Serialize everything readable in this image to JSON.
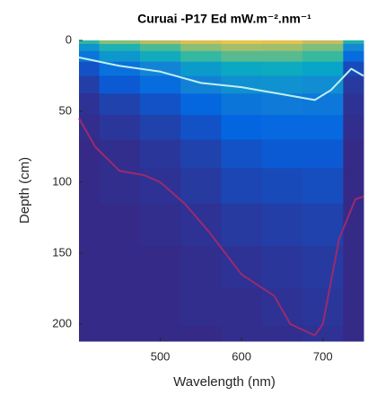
{
  "chart_data": {
    "type": "heatmap",
    "title": "Curuai -P17 Ed mW.m⁻².nm⁻¹",
    "x_label": "Wavelength  (nm)",
    "y_label": "Depth  (cm)",
    "xlim": [
      400,
      750
    ],
    "xticks": [
      500,
      600,
      700
    ],
    "ylim": [
      0,
      212
    ],
    "yticks": [
      0,
      50,
      100,
      150,
      200
    ],
    "y_reversed": true,
    "zlim": [
      0,
      100
    ],
    "colormap": [
      "#352a87",
      "#0363e1",
      "#1485d4",
      "#06a7c6",
      "#38b99e",
      "#92bf73",
      "#d9ba56",
      "#f9d53a"
    ],
    "x": [
      400,
      450,
      500,
      550,
      600,
      650,
      700,
      750
    ],
    "y": [
      0,
      5,
      10,
      20,
      30,
      45,
      60,
      80,
      100,
      130,
      160,
      190,
      212
    ],
    "z": [
      [
        55,
        70,
        80,
        88,
        92,
        90,
        82,
        50
      ],
      [
        35,
        50,
        60,
        70,
        75,
        74,
        68,
        30
      ],
      [
        22,
        36,
        46,
        56,
        62,
        62,
        57,
        18
      ],
      [
        10,
        20,
        28,
        38,
        44,
        45,
        42,
        8
      ],
      [
        5,
        12,
        18,
        27,
        33,
        34,
        32,
        4
      ],
      [
        2,
        6,
        10,
        16,
        22,
        24,
        23,
        2
      ],
      [
        1,
        3,
        6,
        10,
        15,
        17,
        17,
        1
      ],
      [
        0,
        1,
        3,
        6,
        10,
        12,
        12,
        0
      ],
      [
        0,
        1,
        2,
        4,
        7,
        8,
        9,
        0
      ],
      [
        0,
        0,
        1,
        2,
        4,
        5,
        6,
        0
      ],
      [
        0,
        0,
        0,
        1,
        2,
        3,
        4,
        0
      ],
      [
        0,
        0,
        0,
        1,
        1,
        2,
        3,
        0
      ],
      [
        0,
        0,
        0,
        0,
        1,
        1,
        2,
        0
      ]
    ],
    "lines": [
      {
        "color": "#bfeff0",
        "x": [
          400,
          450,
          500,
          550,
          600,
          650,
          690,
          710,
          735,
          750
        ],
        "y": [
          12,
          18,
          22,
          30,
          33,
          38,
          42,
          35,
          20,
          25
        ]
      },
      {
        "color": "#9b2a6e",
        "x": [
          400,
          420,
          450,
          480,
          500,
          530,
          560,
          600,
          640,
          660,
          690,
          700,
          720,
          740,
          750
        ],
        "y": [
          55,
          75,
          92,
          95,
          100,
          115,
          135,
          165,
          180,
          200,
          208,
          200,
          140,
          112,
          110
        ]
      }
    ]
  }
}
